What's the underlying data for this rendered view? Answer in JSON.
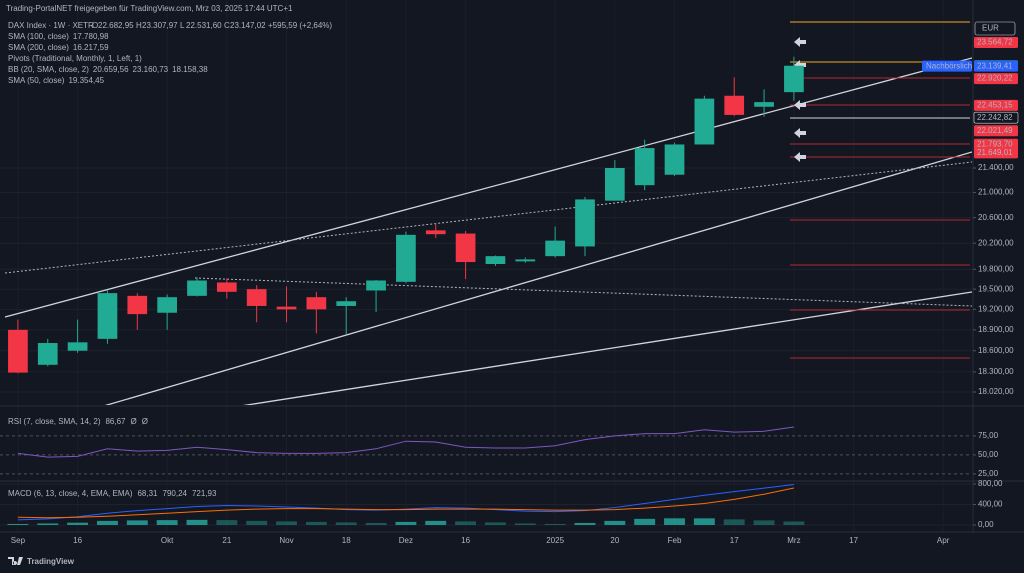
{
  "header": {
    "share": "Trading-PortalNET freigegeben für TradingView.com, Mrz 03, 2025 17:44 UTC+1",
    "symbol": "DAX Index · 1W · XETR",
    "ohlc": [
      {
        "key": "O",
        "value": "22.682,95"
      },
      {
        "key": "H",
        "value": "23.307,97"
      },
      {
        "key": "L",
        "value": "22.531,60"
      },
      {
        "key": "C",
        "value": "23.147,02"
      }
    ],
    "change": "+595,59 (+2,64%)",
    "currency": "EUR",
    "brand": "TradingView"
  },
  "indicators": [
    {
      "name": "SMA (100, close)",
      "values": [
        "17.780,98"
      ],
      "color": "#f7c948"
    },
    {
      "name": "SMA (200, close)",
      "values": [
        "16.217,59"
      ],
      "color": "#f7c948"
    },
    {
      "name": "Pivots (Traditional, Monthly, 1, Left, 1)",
      "values": []
    },
    {
      "name": "BB (20, SMA, close, 2)",
      "values": [
        "20.659,56",
        "23.160,73",
        "18.158,38"
      ],
      "color": "#2962ff"
    },
    {
      "name": "SMA (50, close)",
      "values": [
        "19.354,45"
      ],
      "color": "#f7c948"
    }
  ],
  "chart_data": [
    {
      "type": "candlestick",
      "x": [
        0,
        1,
        2,
        3,
        4,
        5,
        6,
        7,
        8,
        9,
        10,
        11,
        12,
        13,
        14,
        15,
        16,
        17,
        18,
        19,
        20,
        21,
        22,
        23,
        24,
        25,
        26
      ],
      "open": [
        18900,
        18400,
        18600,
        18770,
        19400,
        19150,
        19400,
        19600,
        19500,
        19240,
        19380,
        19250,
        19480,
        19610,
        20400,
        20350,
        19880,
        19920,
        20000,
        20150,
        20870,
        21120,
        21290,
        21790,
        22620,
        22430,
        22682.95
      ],
      "high": [
        19050,
        18770,
        19050,
        19480,
        19440,
        19420,
        19680,
        19660,
        19560,
        19540,
        19460,
        19380,
        19640,
        20380,
        20510,
        20390,
        20010,
        19980,
        20460,
        20930,
        21530,
        21870,
        21820,
        22620,
        22940,
        22730,
        23307.97
      ],
      "low": [
        18280,
        18380,
        18570,
        18700,
        18900,
        18900,
        19390,
        19360,
        19010,
        19010,
        18850,
        18840,
        19160,
        19590,
        20280,
        19650,
        19850,
        19900,
        19980,
        20000,
        20870,
        21040,
        21270,
        21790,
        22270,
        22260,
        22531.6
      ],
      "close": [
        18290,
        18710,
        18720,
        19440,
        19130,
        19380,
        19630,
        19460,
        19250,
        19200,
        19200,
        19320,
        19630,
        20330,
        20340,
        19910,
        20000,
        19950,
        20240,
        20890,
        21400,
        21730,
        21790,
        22570,
        22290,
        22510,
        23147.02
      ],
      "up_color": "#22ab94",
      "down_color": "#f23645",
      "xlim": [
        -0.6,
        31.9
      ],
      "xticks": [
        {
          "value": 0,
          "label": "Sep"
        },
        {
          "value": 2,
          "label": "16"
        },
        {
          "value": 5,
          "label": "Okt"
        },
        {
          "value": 7,
          "label": "21"
        },
        {
          "value": 9,
          "label": "Nov"
        },
        {
          "value": 11,
          "label": "18"
        },
        {
          "value": 13,
          "label": "Dez"
        },
        {
          "value": 15,
          "label": "16"
        },
        {
          "value": 18,
          "label": "2025"
        },
        {
          "value": 20,
          "label": "20"
        },
        {
          "value": 22,
          "label": "Feb"
        },
        {
          "value": 24,
          "label": "17"
        },
        {
          "value": 26,
          "label": "Mrz"
        },
        {
          "value": 28,
          "label": "17"
        },
        {
          "value": 31,
          "label": "Apr"
        }
      ],
      "ylim": [
        17841,
        24345
      ],
      "log_scale": true,
      "yticks": [
        {
          "value": 21400,
          "label": "21.400,00"
        },
        {
          "value": 21000,
          "label": "21.000,00"
        },
        {
          "value": 20600,
          "label": "20.600,00"
        },
        {
          "value": 20200,
          "label": "20.200,00"
        },
        {
          "value": 19800,
          "label": "19.800,00"
        },
        {
          "value": 19500,
          "label": "19.500,00"
        },
        {
          "value": 19200,
          "label": "19.200,00"
        },
        {
          "value": 18900,
          "label": "18.900,00"
        },
        {
          "value": 18600,
          "label": "18.600,00"
        },
        {
          "value": 18300,
          "label": "18.300,00"
        },
        {
          "value": 18020,
          "label": "18.020,00"
        }
      ],
      "price_labels": [
        {
          "value": 23564.72,
          "label": "23.564,72",
          "color": "#f23645"
        },
        {
          "value": 23147.02,
          "label": "23.147,02",
          "color": "#22ab94"
        },
        {
          "value": 23139.41,
          "label": "23.139,41",
          "color": "#2962ff",
          "tag": "Nachbörslich"
        },
        {
          "value": 22920.22,
          "label": "22.920,22",
          "color": "#f23645"
        },
        {
          "value": 22453.15,
          "label": "22.453,15",
          "color": "#f23645"
        },
        {
          "value": 22242.82,
          "label": "22.242,82",
          "color": "#131722"
        },
        {
          "value": 22021.49,
          "label": "22.021,49",
          "color": "#f23645"
        },
        {
          "value": 21793.7,
          "label": "21.793,70",
          "color": "#f23645"
        },
        {
          "value": 21649.01,
          "label": "21.649,01",
          "color": "#f23645"
        }
      ]
    },
    {
      "type": "line",
      "title": "RSI (7, close, SMA, 14, 2)",
      "legend_values": [
        "86,67",
        "Ø",
        "Ø"
      ],
      "x": [
        0,
        1,
        2,
        3,
        4,
        5,
        6,
        7,
        8,
        9,
        10,
        11,
        12,
        13,
        14,
        15,
        16,
        17,
        18,
        19,
        20,
        21,
        22,
        23,
        24,
        25,
        26
      ],
      "series": [
        {
          "color": "#7e57c2",
          "values": [
            52,
            47,
            48,
            58,
            55,
            56,
            60,
            57,
            53,
            52,
            52,
            53,
            58,
            68,
            67,
            60,
            59,
            59,
            62,
            70,
            75,
            78,
            78,
            83,
            80,
            81,
            86.67
          ]
        }
      ],
      "xlim": [
        -0.6,
        31.9
      ],
      "ylim": [
        17,
        109
      ],
      "yticks": [
        {
          "value": 75,
          "label": "75,00"
        },
        {
          "value": 50,
          "label": "50,00"
        },
        {
          "value": 25,
          "label": "25,00"
        }
      ]
    },
    {
      "type": "macd",
      "title": "MACD (6, 13, close, 4, EMA, EMA)",
      "legend_values": [
        "68,31",
        "790,24",
        "721,93"
      ],
      "x": [
        0,
        1,
        2,
        3,
        4,
        5,
        6,
        7,
        8,
        9,
        10,
        11,
        12,
        13,
        14,
        15,
        16,
        17,
        18,
        19,
        20,
        21,
        22,
        23,
        24,
        25,
        26
      ],
      "histogram": {
        "color": "#26a69a",
        "values": [
          20,
          30,
          45,
          80,
          90,
          95,
          100,
          95,
          80,
          70,
          60,
          50,
          40,
          60,
          80,
          70,
          50,
          30,
          20,
          40,
          80,
          120,
          130,
          130,
          110,
          90,
          68.31
        ]
      },
      "series": [
        {
          "color": "#2962ff",
          "values": [
            100,
            120,
            160,
            230,
            280,
            320,
            360,
            380,
            370,
            350,
            330,
            300,
            290,
            310,
            340,
            330,
            300,
            270,
            260,
            280,
            340,
            420,
            500,
            580,
            650,
            720,
            790.24
          ]
        },
        {
          "color": "#ff6d00",
          "values": [
            150,
            140,
            150,
            170,
            200,
            230,
            260,
            290,
            310,
            320,
            320,
            310,
            300,
            300,
            310,
            310,
            310,
            300,
            290,
            290,
            300,
            330,
            370,
            420,
            500,
            600,
            721.93
          ]
        }
      ],
      "xlim": [
        -0.6,
        31.9
      ],
      "ylim": [
        -137,
        839
      ],
      "yticks": [
        {
          "value": 800,
          "label": "800,00"
        },
        {
          "value": 400,
          "label": "400,00"
        },
        {
          "value": 0,
          "label": "0,00"
        }
      ]
    }
  ]
}
